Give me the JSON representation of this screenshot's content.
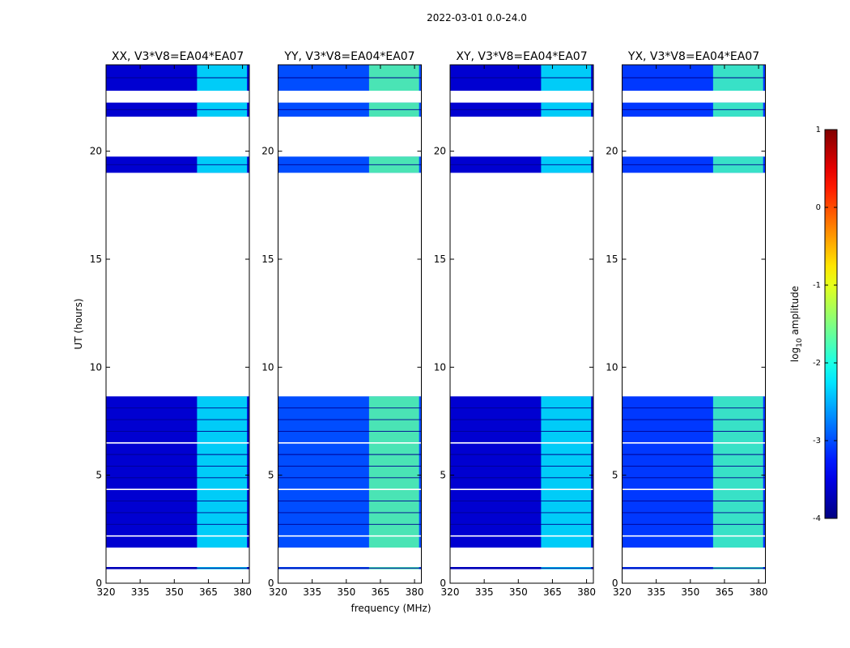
{
  "suptitle": "2022-03-01 0.0-24.0",
  "chart_data": {
    "type": "heatmap",
    "xlabel": "frequency (MHz)",
    "ylabel": "UT (hours)",
    "xlim": [
      320,
      383
    ],
    "ylim": [
      0,
      24
    ],
    "xticks": [
      320,
      335,
      350,
      365,
      380
    ],
    "yticks": [
      0,
      5,
      10,
      15,
      20
    ],
    "rfi_band_mhz": [
      360,
      382
    ],
    "observed_ut_blocks": [
      [
        0.65,
        0.75
      ],
      [
        1.65,
        8.65
      ],
      [
        19.0,
        19.75
      ],
      [
        21.6,
        22.25
      ],
      [
        22.8,
        24.0
      ]
    ],
    "panels": [
      {
        "title": "XX, V3*V8=EA04*EA07",
        "background_log10": -3.6,
        "band_log10": -2.2
      },
      {
        "title": "YY, V3*V8=EA04*EA07",
        "background_log10": -3.0,
        "band_log10": -1.7
      },
      {
        "title": "XY, V3*V8=EA04*EA07",
        "background_log10": -3.6,
        "band_log10": -2.2
      },
      {
        "title": "YX, V3*V8=EA04*EA07",
        "background_log10": -3.1,
        "band_log10": -1.8
      }
    ],
    "colorbar": {
      "label": "log10 amplitude",
      "label_base": "log",
      "label_sub": "10",
      "label_rest": " amplitude",
      "range": [
        -4,
        1
      ],
      "ticks": [
        1,
        0,
        -1,
        -2,
        -3,
        -4
      ],
      "colormap": "jet"
    }
  }
}
